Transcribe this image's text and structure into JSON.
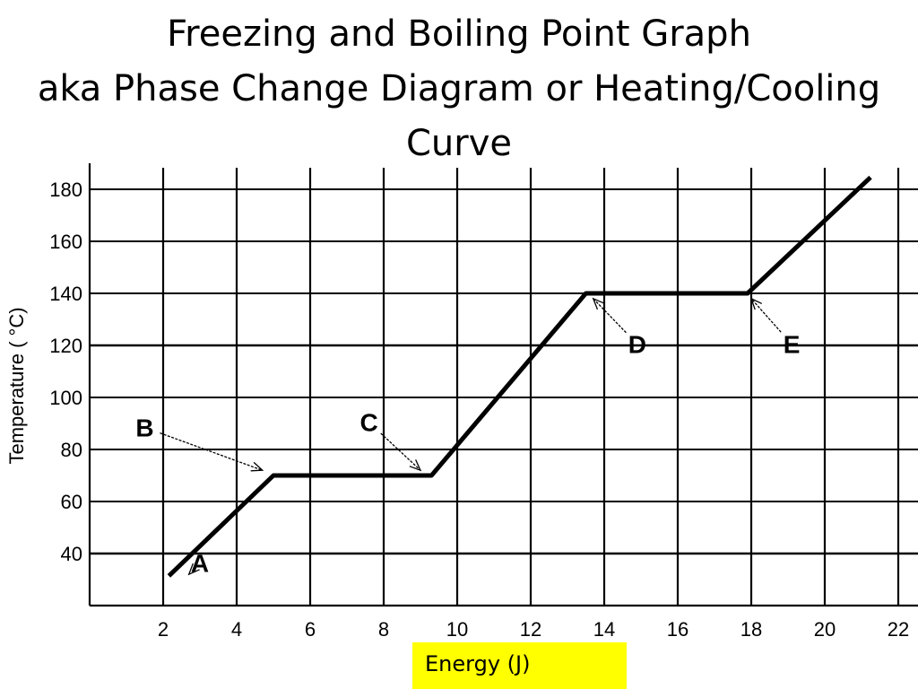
{
  "title": {
    "line1": "Freezing and Boiling Point Graph",
    "line2": "aka Phase Change Diagram or Heating/Cooling",
    "line3": "Curve"
  },
  "energy_label": "Energy (J)",
  "chart_data": {
    "type": "line",
    "title": "Freezing and Boiling Point Graph aka Phase Change Diagram or Heating/Cooling Curve",
    "xlabel": "Energy (J)",
    "ylabel": "Temperature ( °C)",
    "xlim": [
      0,
      22
    ],
    "ylim": [
      20,
      190
    ],
    "x_ticks": [
      2,
      4,
      6,
      8,
      10,
      12,
      14,
      16,
      18,
      20,
      22
    ],
    "y_ticks": [
      40,
      60,
      80,
      100,
      120,
      140,
      160,
      180
    ],
    "grid": true,
    "series": [
      {
        "x": [
          2.2,
          5.0,
          9.3,
          13.5,
          17.9,
          21.2
        ],
        "y": [
          32,
          70,
          70,
          140,
          140,
          184
        ]
      }
    ],
    "annotations": [
      {
        "label": "A",
        "text_at": [
          3.0,
          33
        ],
        "point": [
          2.7,
          32
        ]
      },
      {
        "label": "B",
        "text_at": [
          1.5,
          85
        ],
        "point": [
          4.7,
          72
        ]
      },
      {
        "label": "C",
        "text_at": [
          7.6,
          87
        ],
        "point": [
          9.0,
          72
        ]
      },
      {
        "label": "D",
        "text_at": [
          14.9,
          117
        ],
        "point": [
          13.7,
          138
        ]
      },
      {
        "label": "E",
        "text_at": [
          19.1,
          117
        ],
        "point": [
          18.0,
          138
        ]
      }
    ]
  }
}
